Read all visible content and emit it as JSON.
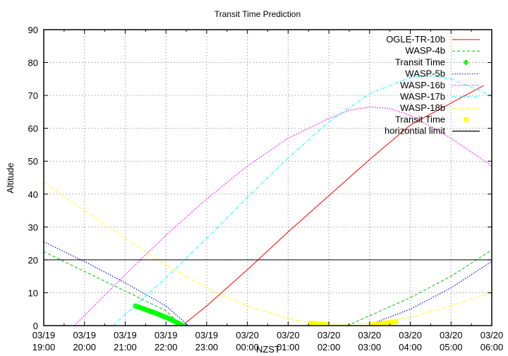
{
  "chart_data": {
    "type": "line",
    "title": "Transit Time Prediction",
    "xlabel": "NZST",
    "ylabel": "Altitude",
    "xlim_hours_from_start": [
      0,
      11
    ],
    "ylim": [
      0,
      90
    ],
    "grid": true,
    "legend_position": "top-right inside",
    "x_ticks": [
      {
        "date": "03/19",
        "time": "19:00"
      },
      {
        "date": "03/19",
        "time": "20:00"
      },
      {
        "date": "03/19",
        "time": "21:00"
      },
      {
        "date": "03/19",
        "time": "22:00"
      },
      {
        "date": "03/19",
        "time": "23:00"
      },
      {
        "date": "03/20",
        "time": "00:00"
      },
      {
        "date": "03/20",
        "time": "01:00"
      },
      {
        "date": "03/20",
        "time": "02:00"
      },
      {
        "date": "03/20",
        "time": "03:00"
      },
      {
        "date": "03/20",
        "time": "04:00"
      },
      {
        "date": "03/20",
        "time": "05:00"
      },
      {
        "date": "03/20",
        "time": "06:00"
      }
    ],
    "y_ticks": [
      "0",
      "10",
      "20",
      "30",
      "40",
      "50",
      "60",
      "70",
      "80",
      "90"
    ],
    "series": [
      {
        "name": "OGLE-TR-10b",
        "color": "#ff0000",
        "style": "solid",
        "points": [
          [
            3.4,
            0
          ],
          [
            4,
            6
          ],
          [
            5,
            17
          ],
          [
            6,
            28.5
          ],
          [
            7,
            39.5
          ],
          [
            8,
            50.5
          ],
          [
            9,
            61
          ],
          [
            10.8,
            73
          ]
        ]
      },
      {
        "name": "WASP-4b",
        "color": "#00c000",
        "style": "dashed",
        "points": [
          [
            0,
            22.5
          ],
          [
            1,
            16.5
          ],
          [
            2,
            10.5
          ],
          [
            3,
            4.5
          ],
          [
            3.4,
            0
          ],
          null,
          [
            7.45,
            0
          ],
          [
            8,
            3
          ],
          [
            9,
            8.5
          ],
          [
            10,
            15
          ],
          [
            11,
            23
          ]
        ]
      },
      {
        "name": "Transit Time",
        "color": "#00ff00",
        "style": "thick",
        "marker": "plus",
        "points": [
          [
            2.25,
            6
          ],
          [
            2.75,
            3.8
          ],
          [
            3.1,
            2
          ],
          [
            3.42,
            0
          ]
        ]
      },
      {
        "name": "WASP-5b",
        "color": "#0000ff",
        "style": "dotted",
        "points": [
          [
            0,
            25.5
          ],
          [
            1,
            19.5
          ],
          [
            2,
            13
          ],
          [
            3,
            6
          ],
          [
            3.55,
            0
          ],
          null,
          [
            8,
            0.3
          ],
          [
            9,
            5
          ],
          [
            10,
            11.5
          ],
          [
            11,
            19.5
          ]
        ]
      },
      {
        "name": "WASP-16b",
        "color": "#ff00ff",
        "style": "dotted",
        "points": [
          [
            0.75,
            0
          ],
          [
            2,
            15.5
          ],
          [
            3,
            27.5
          ],
          [
            4,
            38.5
          ],
          [
            5,
            48.5
          ],
          [
            6,
            57
          ],
          [
            7,
            63
          ],
          [
            7.5,
            65.5
          ],
          [
            8,
            66.5
          ],
          [
            8.5,
            66
          ],
          [
            9,
            64
          ],
          [
            10,
            57
          ],
          [
            11,
            48.5
          ]
        ]
      },
      {
        "name": "WASP-17b",
        "color": "#00ffff",
        "style": "dash-dot",
        "points": [
          [
            1.7,
            0
          ],
          [
            3,
            14.5
          ],
          [
            4,
            26.5
          ],
          [
            5,
            39
          ],
          [
            6,
            51
          ],
          [
            7,
            62
          ],
          [
            8,
            70.5
          ],
          [
            9,
            75.5
          ],
          [
            9.5,
            76
          ],
          [
            10,
            75
          ],
          [
            11,
            70
          ]
        ]
      },
      {
        "name": "WASP-18b",
        "color": "#ffff00",
        "style": "dash-dot",
        "points": [
          [
            0,
            43.5
          ],
          [
            1,
            35
          ],
          [
            2,
            26.5
          ],
          [
            3,
            18.5
          ],
          [
            4,
            11.5
          ],
          [
            5,
            6
          ],
          [
            6,
            2.2
          ],
          [
            6.5,
            1
          ],
          [
            7,
            0.5
          ],
          [
            7.5,
            0.4
          ],
          [
            8,
            0.8
          ],
          [
            9,
            2.5
          ],
          [
            10,
            6
          ],
          [
            11,
            10
          ]
        ]
      },
      {
        "name": "Transit Time",
        "color": "#ffff00",
        "style": "thick",
        "marker": "cross",
        "points": [
          [
            6.55,
            0.8
          ],
          [
            6.95,
            0.3
          ],
          null,
          [
            8.05,
            0.2
          ],
          [
            8.65,
            1.2
          ]
        ]
      },
      {
        "name": "horizontial limit",
        "color": "#000000",
        "style": "solid",
        "points": [
          [
            0,
            20
          ],
          [
            11,
            20
          ]
        ]
      }
    ]
  }
}
